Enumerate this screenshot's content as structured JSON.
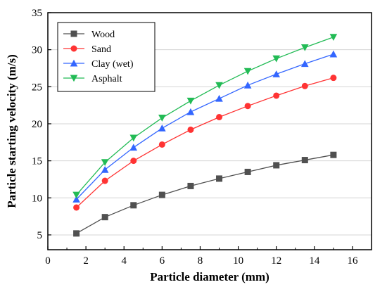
{
  "chart_data": {
    "type": "line",
    "title": "",
    "xlabel": "Particle diameter (mm)",
    "ylabel": "Particle starting velocity (m/s)",
    "xlim": [
      0,
      17
    ],
    "ylim": [
      3,
      35
    ],
    "x_ticks": [
      0,
      2,
      4,
      6,
      8,
      10,
      12,
      14,
      16
    ],
    "y_ticks": [
      5,
      10,
      15,
      20,
      25,
      30,
      35
    ],
    "grid": true,
    "legend_position": "top-left",
    "x": [
      1.5,
      3,
      4.5,
      6,
      7.5,
      9,
      10.5,
      12,
      13.5,
      15
    ],
    "series": [
      {
        "name": "Wood",
        "color": "#505050",
        "marker": "square",
        "values": [
          5.2,
          7.4,
          9.0,
          10.4,
          11.6,
          12.6,
          13.5,
          14.4,
          15.1,
          15.8
        ]
      },
      {
        "name": "Sand",
        "color": "#ff3333",
        "marker": "circle",
        "values": [
          8.7,
          12.3,
          15.0,
          17.2,
          19.2,
          20.9,
          22.4,
          23.8,
          25.1,
          26.2
        ]
      },
      {
        "name": "Clay (wet)",
        "color": "#3366ff",
        "marker": "triangle-up",
        "values": [
          9.8,
          13.8,
          16.8,
          19.4,
          21.6,
          23.4,
          25.2,
          26.7,
          28.1,
          29.4
        ]
      },
      {
        "name": "Asphalt",
        "color": "#22bb55",
        "marker": "triangle-down",
        "values": [
          10.4,
          14.8,
          18.1,
          20.8,
          23.1,
          25.2,
          27.1,
          28.8,
          30.3,
          31.7
        ]
      }
    ]
  }
}
